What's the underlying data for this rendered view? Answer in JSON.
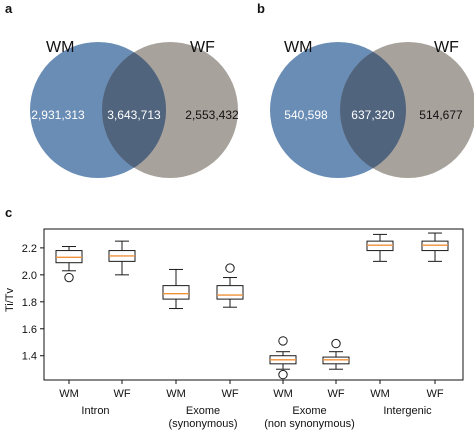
{
  "panels": {
    "a": {
      "label": "a",
      "left_set": "WM",
      "right_set": "WF",
      "left_only": "2,931,313",
      "shared": "3,643,713",
      "right_only": "2,553,432"
    },
    "b": {
      "label": "b",
      "left_set": "WM",
      "right_set": "WF",
      "left_only": "540,598",
      "shared": "637,320",
      "right_only": "514,677"
    },
    "c": {
      "label": "c"
    }
  },
  "colors": {
    "wm_circle": "#6a8db5",
    "wf_circle": "#a8a29c",
    "overlap": "#50647e",
    "median": "#f0913a",
    "box_edge": "#1a1a1a"
  },
  "chart_data": [
    {
      "type": "venn",
      "sets": [
        "WM",
        "WF"
      ],
      "values": {
        "WM_only": 2931313,
        "shared": 3643713,
        "WF_only": 2553432
      }
    },
    {
      "type": "venn",
      "sets": [
        "WM",
        "WF"
      ],
      "values": {
        "WM_only": 540598,
        "shared": 637320,
        "WF_only": 514677
      }
    },
    {
      "type": "box",
      "ylabel": "Ti/Tv",
      "ylim": [
        1.22,
        2.34
      ],
      "yticks": [
        1.4,
        1.6,
        1.8,
        2.0,
        2.2
      ],
      "ytick_labels": [
        "1.4",
        "1.6",
        "1.8",
        "2.0",
        "2.2"
      ],
      "groups": [
        "Intron",
        "Exome\n(synonymous)",
        "Exome\n(non synonymous)",
        "Intergenic"
      ],
      "categories": [
        "WM",
        "WF",
        "WM",
        "WF",
        "WM",
        "WF",
        "WM",
        "WF"
      ],
      "boxes": [
        {
          "group": 0,
          "category": "WM",
          "whisker_low": 2.03,
          "q1": 2.09,
          "median": 2.13,
          "q3": 2.18,
          "whisker_high": 2.21,
          "outliers": [
            1.98
          ]
        },
        {
          "group": 0,
          "category": "WF",
          "whisker_low": 2.0,
          "q1": 2.1,
          "median": 2.14,
          "q3": 2.18,
          "whisker_high": 2.25,
          "outliers": []
        },
        {
          "group": 1,
          "category": "WM",
          "whisker_low": 1.75,
          "q1": 1.82,
          "median": 1.86,
          "q3": 1.92,
          "whisker_high": 2.04,
          "outliers": []
        },
        {
          "group": 1,
          "category": "WF",
          "whisker_low": 1.76,
          "q1": 1.82,
          "median": 1.85,
          "q3": 1.92,
          "whisker_high": 1.98,
          "outliers": [
            2.05
          ]
        },
        {
          "group": 2,
          "category": "WM",
          "whisker_low": 1.3,
          "q1": 1.34,
          "median": 1.37,
          "q3": 1.4,
          "whisker_high": 1.43,
          "outliers": [
            1.51,
            1.26
          ]
        },
        {
          "group": 2,
          "category": "WF",
          "whisker_low": 1.3,
          "q1": 1.34,
          "median": 1.37,
          "q3": 1.39,
          "whisker_high": 1.43,
          "outliers": [
            1.49
          ]
        },
        {
          "group": 3,
          "category": "WM",
          "whisker_low": 2.1,
          "q1": 2.18,
          "median": 2.22,
          "q3": 2.25,
          "whisker_high": 2.3,
          "outliers": []
        },
        {
          "group": 3,
          "category": "WF",
          "whisker_low": 2.1,
          "q1": 2.18,
          "median": 2.22,
          "q3": 2.25,
          "whisker_high": 2.31,
          "outliers": []
        }
      ]
    }
  ]
}
